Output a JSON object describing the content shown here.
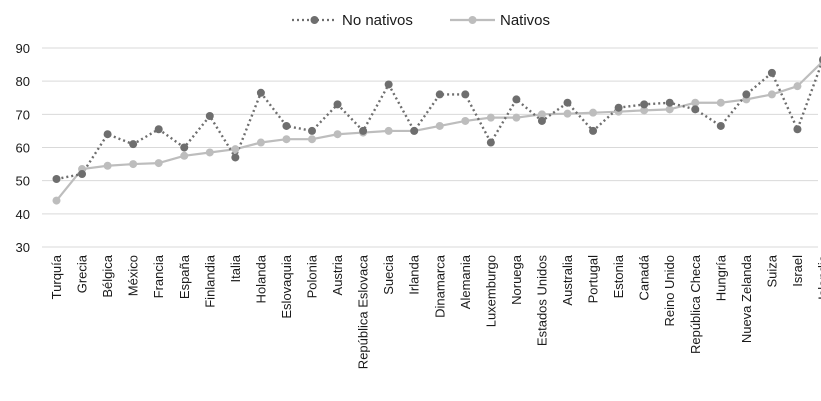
{
  "chart_data": {
    "type": "line",
    "categories": [
      "Turquía",
      "Grecia",
      "Bélgica",
      "México",
      "Francia",
      "España",
      "Finlandia",
      "Italia",
      "Holanda",
      "Eslovaquia",
      "Polonia",
      "Austria",
      "República Eslovaca",
      "Suecia",
      "Irlanda",
      "Dinamarca",
      "Alemania",
      "Luxemburgo",
      "Noruega",
      "Estados Unidos",
      "Australia",
      "Portugal",
      "Estonia",
      "Canadá",
      "Reino Unido",
      "República Checa",
      "Hungría",
      "Nueva Zelanda",
      "Suiza",
      "Israel",
      "Islandia"
    ],
    "series": [
      {
        "name": "No nativos",
        "color": "#6e6e6e",
        "line_style": "dotted",
        "values": [
          50.5,
          52,
          64,
          61,
          65.5,
          60,
          69.5,
          57,
          76.5,
          66.5,
          65,
          73,
          65,
          79,
          65,
          76,
          76,
          61.5,
          74.5,
          68,
          73.5,
          65,
          72,
          73,
          73.5,
          71.5,
          66.5,
          76,
          82.5,
          65.5,
          86.5
        ]
      },
      {
        "name": "Nativos",
        "color": "#bdbdbd",
        "line_style": "solid",
        "values": [
          44,
          53.5,
          54.5,
          55,
          55.3,
          57.5,
          58.5,
          59.5,
          61.5,
          62.5,
          62.5,
          64,
          64.5,
          65,
          65,
          66.5,
          68,
          69,
          69,
          70,
          70.2,
          70.5,
          70.8,
          71.2,
          71.5,
          73.5,
          73.5,
          74.5,
          76,
          78.5,
          86
        ]
      }
    ],
    "ylim": [
      30,
      90
    ],
    "yticks": [
      30,
      40,
      50,
      60,
      70,
      80,
      90
    ],
    "grid": true,
    "legend": "top-center"
  }
}
